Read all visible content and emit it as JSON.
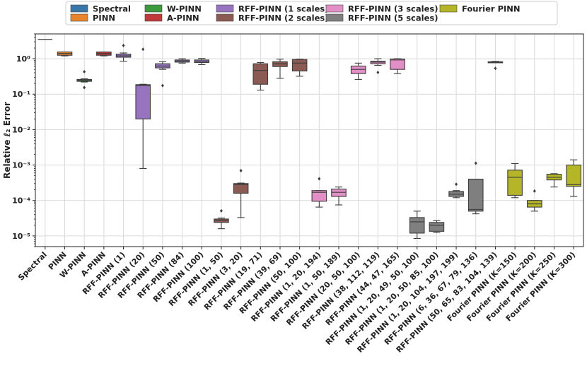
{
  "chart_data": {
    "type": "box",
    "ylabel": "Relative ℓ₂ Error",
    "yscale": "log",
    "ylim": [
      5e-06,
      5
    ],
    "y_ticks": [
      {
        "value": 1,
        "label": "10⁰"
      },
      {
        "value": 0.1,
        "label": "10⁻¹"
      },
      {
        "value": 0.01,
        "label": "10⁻²"
      },
      {
        "value": 0.001,
        "label": "10⁻³"
      },
      {
        "value": 0.0001,
        "label": "10⁻⁴"
      },
      {
        "value": 1e-05,
        "label": "10⁻⁵"
      }
    ],
    "legend": [
      {
        "name": "Spectral",
        "color": "#3a76a8"
      },
      {
        "name": "PINN",
        "color": "#e8842c"
      },
      {
        "name": "W-PINN",
        "color": "#3c9a3c"
      },
      {
        "name": "A-PINN",
        "color": "#c0393b"
      },
      {
        "name": "RFF-PINN (1 scales)",
        "color": "#9874c0"
      },
      {
        "name": "RFF-PINN (2 scales)",
        "color": "#8b5a52"
      },
      {
        "name": "RFF-PINN (3 scales)",
        "color": "#e18fc6"
      },
      {
        "name": "RFF-PINN (5 scales)",
        "color": "#7f7f7f"
      },
      {
        "name": "Fourier PINN",
        "color": "#b5b528",
        "highlight": true
      }
    ],
    "highlight_color": "#ff0000",
    "categories": [
      {
        "label": "Spectral",
        "group": 0,
        "min": 3.5,
        "q1": 3.5,
        "med": 3.5,
        "q3": 3.5,
        "max": 3.5,
        "fliers": [],
        "line_only": true
      },
      {
        "label": "PINN",
        "group": 1,
        "min": 1.2,
        "q1": 1.25,
        "med": 1.4,
        "q3": 1.55,
        "max": 1.55,
        "fliers": []
      },
      {
        "label": "W-PINN",
        "group": 2,
        "min": 0.22,
        "q1": 0.23,
        "med": 0.245,
        "q3": 0.26,
        "max": 0.27,
        "fliers": [
          0.42,
          0.15
        ]
      },
      {
        "label": "A-PINN",
        "group": 3,
        "min": 1.2,
        "q1": 1.25,
        "med": 1.4,
        "q3": 1.55,
        "max": 1.55,
        "fliers": []
      },
      {
        "label": "RFF-PINN (1)",
        "group": 4,
        "min": 0.85,
        "q1": 1.1,
        "med": 1.2,
        "q3": 1.35,
        "max": 1.45,
        "fliers": [
          2.3
        ]
      },
      {
        "label": "RFF-PINN (20)",
        "group": 4,
        "min": 0.0008,
        "q1": 0.02,
        "med": 0.175,
        "q3": 0.185,
        "max": 0.19,
        "fliers": [
          1.8
        ]
      },
      {
        "label": "RFF-PINN (50)",
        "group": 4,
        "min": 0.5,
        "q1": 0.55,
        "med": 0.62,
        "q3": 0.72,
        "max": 0.82,
        "fliers": [
          0.17
        ]
      },
      {
        "label": "RFF-PINN (84)",
        "group": 4,
        "min": 0.75,
        "q1": 0.8,
        "med": 0.86,
        "q3": 0.92,
        "max": 1.0,
        "fliers": []
      },
      {
        "label": "RFF-PINN (100)",
        "group": 4,
        "min": 0.68,
        "q1": 0.78,
        "med": 0.85,
        "q3": 0.92,
        "max": 1.02,
        "fliers": []
      },
      {
        "label": "RFF-PINN (1, 50)",
        "group": 5,
        "min": 1.6e-05,
        "q1": 2.4e-05,
        "med": 2.7e-05,
        "q3": 3e-05,
        "max": 3.2e-05,
        "fliers": [
          5e-05
        ]
      },
      {
        "label": "RFF-PINN (3, 20)",
        "group": 5,
        "min": 3.3e-05,
        "q1": 0.00016,
        "med": 0.00028,
        "q3": 0.0003,
        "max": 0.00031,
        "fliers": [
          0.00068
        ]
      },
      {
        "label": "RFF-PINN (19, 71)",
        "group": 5,
        "min": 0.13,
        "q1": 0.19,
        "med": 0.47,
        "q3": 0.72,
        "max": 0.78,
        "fliers": []
      },
      {
        "label": "RFF-PINN (39, 69)",
        "group": 5,
        "min": 0.28,
        "q1": 0.6,
        "med": 0.72,
        "q3": 0.82,
        "max": 0.97,
        "fliers": []
      },
      {
        "label": "RFF-PINN (50, 100)",
        "group": 5,
        "min": 0.32,
        "q1": 0.45,
        "med": 0.75,
        "q3": 0.95,
        "max": 0.97,
        "fliers": []
      },
      {
        "label": "RFF-PINN (1, 20, 194)",
        "group": 6,
        "min": 6.5e-05,
        "q1": 9.5e-05,
        "med": 0.00017,
        "q3": 0.00019,
        "max": 0.00019,
        "fliers": [
          0.0004
        ]
      },
      {
        "label": "RFF-PINN (1, 50, 189)",
        "group": 6,
        "min": 7.5e-05,
        "q1": 0.00013,
        "med": 0.00017,
        "q3": 0.00021,
        "max": 0.00024,
        "fliers": []
      },
      {
        "label": "RFF-PINN (20, 50, 100)",
        "group": 6,
        "min": 0.26,
        "q1": 0.38,
        "med": 0.5,
        "q3": 0.62,
        "max": 0.75,
        "fliers": []
      },
      {
        "label": "RFF-PINN (38, 112, 119)",
        "group": 6,
        "min": 0.65,
        "q1": 0.72,
        "med": 0.8,
        "q3": 0.85,
        "max": 1.0,
        "fliers": [
          0.4
        ]
      },
      {
        "label": "RFF-PINN (44, 47, 165)",
        "group": 6,
        "min": 0.38,
        "q1": 0.5,
        "med": 0.92,
        "q3": 0.98,
        "max": 1.0,
        "fliers": []
      },
      {
        "label": "RFF-PINN (1, 20, 49, 50, 100)",
        "group": 7,
        "min": 8.5e-06,
        "q1": 1.2e-05,
        "med": 2.5e-05,
        "q3": 3.3e-05,
        "max": 5e-05,
        "fliers": []
      },
      {
        "label": "RFF-PINN (1, 20, 50, 85, 100)",
        "group": 7,
        "min": 1.25e-05,
        "q1": 1.35e-05,
        "med": 2e-05,
        "q3": 2.4e-05,
        "max": 2.7e-05,
        "fliers": []
      },
      {
        "label": "RFF-PINN (1, 20, 104, 197, 199)",
        "group": 7,
        "min": 0.00012,
        "q1": 0.00013,
        "med": 0.00015,
        "q3": 0.00018,
        "max": 0.00019,
        "fliers": [
          0.00028
        ]
      },
      {
        "label": "RFF-PINN (6, 36, 67, 79, 136)",
        "group": 7,
        "min": 4.2e-05,
        "q1": 5e-05,
        "med": 5.6e-05,
        "q3": 0.0004,
        "max": 0.0004,
        "fliers": [
          0.0011
        ]
      },
      {
        "label": "RFF-PINN (50, 65, 83, 104, 139)",
        "group": 7,
        "min": 0.78,
        "q1": 0.79,
        "med": 0.8,
        "q3": 0.82,
        "max": 0.84,
        "fliers": [
          0.52
        ]
      },
      {
        "label": "Fourier PINN (K=150)",
        "group": 8,
        "min": 0.00012,
        "q1": 0.00014,
        "med": 0.00045,
        "q3": 0.00072,
        "max": 0.0011,
        "fliers": []
      },
      {
        "label": "Fourier PINN (K=200)",
        "group": 8,
        "min": 5e-05,
        "q1": 6.5e-05,
        "med": 8e-05,
        "q3": 0.0001,
        "max": 0.0001,
        "fliers": [
          0.00018
        ]
      },
      {
        "label": "Fourier PINN (K=250)",
        "group": 8,
        "min": 0.00024,
        "q1": 0.00038,
        "med": 0.00045,
        "q3": 0.00055,
        "max": 0.00057,
        "fliers": []
      },
      {
        "label": "Fourier PINN (K=300)",
        "group": 8,
        "min": 0.00013,
        "q1": 0.00025,
        "med": 0.00028,
        "q3": 0.001,
        "max": 0.0014,
        "fliers": []
      }
    ]
  }
}
